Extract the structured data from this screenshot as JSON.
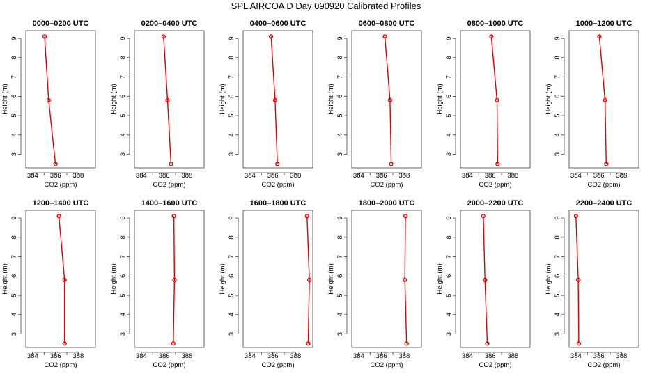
{
  "figure": {
    "title": "SPL AIRCOA D  Day 090920  Calibrated Profiles"
  },
  "colors": {
    "series": "#dd0000",
    "axis": "#000000"
  },
  "chart_data": [
    {
      "type": "line",
      "title": "0000–0200 UTC",
      "xlabel": "CO2 (ppm)",
      "ylabel": "Height (m)",
      "xlim": [
        383.4,
        389.5
      ],
      "ylim": [
        2.3,
        9.4
      ],
      "xticks": [
        384,
        386,
        388
      ],
      "yticks": [
        3,
        4,
        5,
        6,
        7,
        8,
        9
      ],
      "x": [
        385.05,
        385.4,
        386.0
      ],
      "y": [
        9.1,
        5.8,
        2.5
      ],
      "grid": false
    },
    {
      "type": "line",
      "title": "0200–0400 UTC",
      "xlabel": "CO2 (ppm)",
      "ylabel": "Height (m)",
      "xlim": [
        383.4,
        389.5
      ],
      "ylim": [
        2.3,
        9.4
      ],
      "xticks": [
        384,
        386,
        388
      ],
      "yticks": [
        3,
        4,
        5,
        6,
        7,
        8,
        9
      ],
      "x": [
        385.95,
        386.3,
        386.6
      ],
      "y": [
        9.1,
        5.8,
        2.5
      ],
      "grid": false
    },
    {
      "type": "line",
      "title": "0400–0600 UTC",
      "xlabel": "CO2 (ppm)",
      "ylabel": "Height (m)",
      "xlim": [
        383.4,
        389.5
      ],
      "ylim": [
        2.3,
        9.4
      ],
      "xticks": [
        384,
        386,
        388
      ],
      "yticks": [
        3,
        4,
        5,
        6,
        7,
        8,
        9
      ],
      "x": [
        385.85,
        386.2,
        386.4
      ],
      "y": [
        9.1,
        5.8,
        2.5
      ],
      "grid": false
    },
    {
      "type": "line",
      "title": "0600–0800 UTC",
      "xlabel": "CO2 (ppm)",
      "ylabel": "Height (m)",
      "xlim": [
        383.4,
        389.5
      ],
      "ylim": [
        2.3,
        9.4
      ],
      "xticks": [
        384,
        386,
        388
      ],
      "yticks": [
        3,
        4,
        5,
        6,
        7,
        8,
        9
      ],
      "x": [
        386.3,
        386.75,
        386.85
      ],
      "y": [
        9.1,
        5.8,
        2.5
      ],
      "grid": false
    },
    {
      "type": "line",
      "title": "0800–1000 UTC",
      "xlabel": "CO2 (ppm)",
      "ylabel": "Height (m)",
      "xlim": [
        383.4,
        389.5
      ],
      "ylim": [
        2.3,
        9.4
      ],
      "xticks": [
        384,
        386,
        388
      ],
      "yticks": [
        3,
        4,
        5,
        6,
        7,
        8,
        9
      ],
      "x": [
        386.1,
        386.6,
        386.65
      ],
      "y": [
        9.1,
        5.8,
        2.5
      ],
      "grid": false
    },
    {
      "type": "line",
      "title": "1000–1200 UTC",
      "xlabel": "CO2 (ppm)",
      "ylabel": "Height (m)",
      "xlim": [
        383.4,
        389.5
      ],
      "ylim": [
        2.3,
        9.4
      ],
      "xticks": [
        384,
        386,
        388
      ],
      "yticks": [
        3,
        4,
        5,
        6,
        7,
        8,
        9
      ],
      "x": [
        386.05,
        386.55,
        386.65
      ],
      "y": [
        9.1,
        5.8,
        2.5
      ],
      "grid": false
    },
    {
      "type": "line",
      "title": "1200–1400 UTC",
      "xlabel": "CO2 (ppm)",
      "ylabel": "Height (m)",
      "xlim": [
        383.4,
        389.5
      ],
      "ylim": [
        2.3,
        9.4
      ],
      "xticks": [
        384,
        386,
        388
      ],
      "yticks": [
        3,
        4,
        5,
        6,
        7,
        8,
        9
      ],
      "x": [
        386.3,
        386.8,
        386.8
      ],
      "y": [
        9.1,
        5.8,
        2.5
      ],
      "grid": false
    },
    {
      "type": "line",
      "title": "1400–1600 UTC",
      "xlabel": "CO2 (ppm)",
      "ylabel": "Height (m)",
      "xlim": [
        383.4,
        389.5
      ],
      "ylim": [
        2.3,
        9.4
      ],
      "xticks": [
        384,
        386,
        388
      ],
      "yticks": [
        3,
        4,
        5,
        6,
        7,
        8,
        9
      ],
      "x": [
        386.85,
        386.9,
        386.8
      ],
      "y": [
        9.1,
        5.8,
        2.5
      ],
      "grid": false
    },
    {
      "type": "line",
      "title": "1600–1800 UTC",
      "xlabel": "CO2 (ppm)",
      "ylabel": "Height (m)",
      "xlim": [
        383.4,
        389.5
      ],
      "ylim": [
        2.3,
        9.4
      ],
      "xticks": [
        384,
        386,
        388
      ],
      "yticks": [
        3,
        4,
        5,
        6,
        7,
        8,
        9
      ],
      "x": [
        389.0,
        389.2,
        389.1
      ],
      "y": [
        9.1,
        5.8,
        2.5
      ],
      "grid": false
    },
    {
      "type": "line",
      "title": "1800–2000 UTC",
      "xlabel": "CO2 (ppm)",
      "ylabel": "Height (m)",
      "xlim": [
        383.4,
        389.5
      ],
      "ylim": [
        2.3,
        9.4
      ],
      "xticks": [
        384,
        386,
        388
      ],
      "yticks": [
        3,
        4,
        5,
        6,
        7,
        8,
        9
      ],
      "x": [
        388.1,
        388.05,
        388.2
      ],
      "y": [
        9.1,
        5.8,
        2.5
      ],
      "grid": false
    },
    {
      "type": "line",
      "title": "2000–2200 UTC",
      "xlabel": "CO2 (ppm)",
      "ylabel": "Height (m)",
      "xlim": [
        383.4,
        389.5
      ],
      "ylim": [
        2.3,
        9.4
      ],
      "xticks": [
        384,
        386,
        388
      ],
      "yticks": [
        3,
        4,
        5,
        6,
        7,
        8,
        9
      ],
      "x": [
        385.4,
        385.55,
        385.75
      ],
      "y": [
        9.1,
        5.8,
        2.5
      ],
      "grid": false
    },
    {
      "type": "line",
      "title": "2200–2400 UTC",
      "xlabel": "CO2 (ppm)",
      "ylabel": "Height (m)",
      "xlim": [
        383.4,
        389.5
      ],
      "ylim": [
        2.3,
        9.4
      ],
      "xticks": [
        384,
        386,
        388
      ],
      "yticks": [
        3,
        4,
        5,
        6,
        7,
        8,
        9
      ],
      "x": [
        384.0,
        384.2,
        384.25
      ],
      "y": [
        9.1,
        5.8,
        2.5
      ],
      "grid": false
    }
  ]
}
